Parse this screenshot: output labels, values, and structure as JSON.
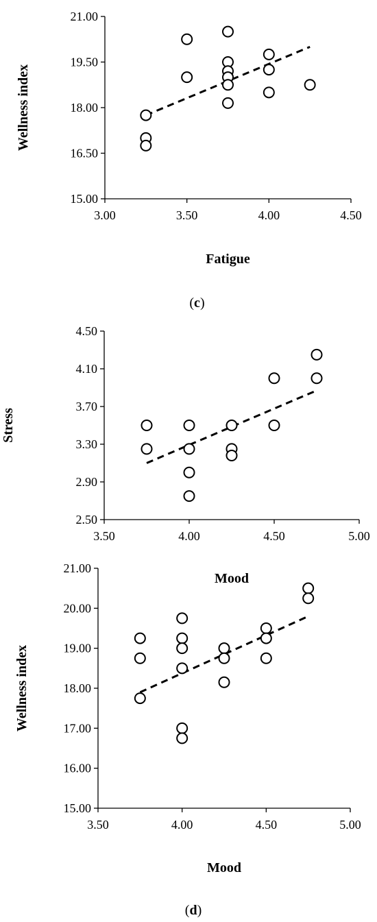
{
  "chart_data": [
    {
      "type": "scatter",
      "title": "",
      "xlabel": "Fatigue",
      "ylabel": "Wellness index",
      "xlim": [
        3.0,
        4.5
      ],
      "ylim": [
        15.0,
        21.0
      ],
      "xticks": [
        "3.00",
        "3.50",
        "4.00",
        "4.50"
      ],
      "yticks": [
        "15.00",
        "16.50",
        "18.00",
        "19.50",
        "21.00"
      ],
      "grid": false,
      "points": [
        {
          "x": 3.25,
          "y": 17.75
        },
        {
          "x": 3.25,
          "y": 17.0
        },
        {
          "x": 3.25,
          "y": 16.75
        },
        {
          "x": 3.5,
          "y": 20.25
        },
        {
          "x": 3.5,
          "y": 19.0
        },
        {
          "x": 3.75,
          "y": 20.5
        },
        {
          "x": 3.75,
          "y": 19.5
        },
        {
          "x": 3.75,
          "y": 19.2
        },
        {
          "x": 3.75,
          "y": 19.0
        },
        {
          "x": 3.75,
          "y": 18.75
        },
        {
          "x": 3.75,
          "y": 18.15
        },
        {
          "x": 4.0,
          "y": 19.75
        },
        {
          "x": 4.0,
          "y": 19.25
        },
        {
          "x": 4.0,
          "y": 18.5
        },
        {
          "x": 4.25,
          "y": 18.75
        }
      ],
      "trendline": {
        "style": "dashed",
        "x": [
          3.25,
          4.25
        ],
        "y": [
          17.75,
          20.0
        ]
      },
      "caption_letter": "c"
    },
    {
      "type": "scatter",
      "title": "",
      "xlabel": "Mood",
      "ylabel": "Stress",
      "xlim": [
        3.5,
        5.0
      ],
      "ylim": [
        2.5,
        4.5
      ],
      "xticks": [
        "3.50",
        "4.00",
        "4.50",
        "5.00"
      ],
      "yticks": [
        "2.50",
        "2.90",
        "3.30",
        "3.70",
        "4.10",
        "4.50"
      ],
      "grid": false,
      "points": [
        {
          "x": 3.75,
          "y": 3.5
        },
        {
          "x": 3.75,
          "y": 3.25
        },
        {
          "x": 4.0,
          "y": 3.5
        },
        {
          "x": 4.0,
          "y": 3.25
        },
        {
          "x": 4.0,
          "y": 3.0
        },
        {
          "x": 4.0,
          "y": 2.75
        },
        {
          "x": 4.25,
          "y": 3.5
        },
        {
          "x": 4.25,
          "y": 3.25
        },
        {
          "x": 4.25,
          "y": 3.18
        },
        {
          "x": 4.5,
          "y": 4.0
        },
        {
          "x": 4.5,
          "y": 3.5
        },
        {
          "x": 4.75,
          "y": 4.25
        },
        {
          "x": 4.75,
          "y": 4.0
        }
      ],
      "trendline": {
        "style": "dashed",
        "x": [
          3.75,
          4.75
        ],
        "y": [
          3.1,
          3.87
        ]
      }
    },
    {
      "type": "scatter",
      "title": "",
      "xlabel": "Mood",
      "ylabel": "Wellness index",
      "xlim": [
        3.5,
        5.0
      ],
      "ylim": [
        15.0,
        21.0
      ],
      "xticks": [
        "3.50",
        "4.00",
        "4.50",
        "5.00"
      ],
      "yticks": [
        "15.00",
        "16.00",
        "17.00",
        "18.00",
        "19.00",
        "20.00",
        "21.00"
      ],
      "grid": false,
      "points": [
        {
          "x": 3.75,
          "y": 19.25
        },
        {
          "x": 3.75,
          "y": 18.75
        },
        {
          "x": 3.75,
          "y": 17.75
        },
        {
          "x": 4.0,
          "y": 19.75
        },
        {
          "x": 4.0,
          "y": 19.25
        },
        {
          "x": 4.0,
          "y": 19.0
        },
        {
          "x": 4.0,
          "y": 18.5
        },
        {
          "x": 4.0,
          "y": 17.0
        },
        {
          "x": 4.0,
          "y": 16.75
        },
        {
          "x": 4.25,
          "y": 19.0
        },
        {
          "x": 4.25,
          "y": 18.75
        },
        {
          "x": 4.25,
          "y": 18.15
        },
        {
          "x": 4.5,
          "y": 19.5
        },
        {
          "x": 4.5,
          "y": 19.25
        },
        {
          "x": 4.5,
          "y": 18.75
        },
        {
          "x": 4.75,
          "y": 20.5
        },
        {
          "x": 4.75,
          "y": 20.25
        }
      ],
      "trendline": {
        "style": "dashed",
        "x": [
          3.75,
          4.75
        ],
        "y": [
          17.9,
          19.8
        ]
      },
      "caption_letter": "d"
    }
  ],
  "colors": {
    "marker_stroke": "#000000",
    "marker_fill": "#ffffff",
    "axis": "#000000",
    "trendline": "#000000",
    "background": "#ffffff"
  }
}
